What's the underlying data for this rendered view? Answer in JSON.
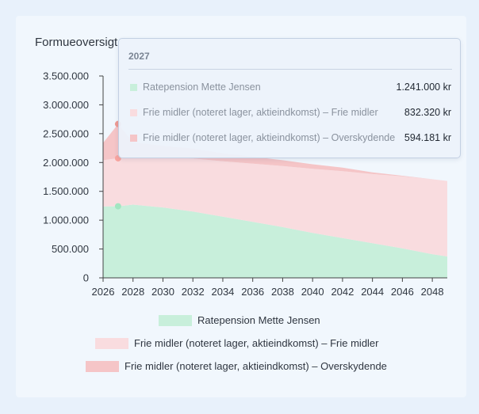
{
  "card": {
    "title": "Formueoversigt"
  },
  "tooltip": {
    "year": "2027",
    "rows": [
      {
        "name": "Ratepension Mette Jensen",
        "value": "1.241.000 kr",
        "color": "#c8efdb"
      },
      {
        "name": "Frie midler (noteret lager, aktieindkomst) – Frie midler",
        "value": "832.320 kr",
        "color": "#f9dcdf"
      },
      {
        "name": "Frie midler (noteret lager, aktieindkomst) – Overskydende",
        "value": "594.181 kr",
        "color": "#f5c5c7"
      }
    ]
  },
  "chart_data": {
    "type": "area",
    "stacked": true,
    "title": "Formueoversigt",
    "x": [
      2026,
      2027,
      2028,
      2030,
      2032,
      2034,
      2036,
      2038,
      2040,
      2042,
      2044,
      2046,
      2048,
      2049
    ],
    "xticks": [
      "2026",
      "2028",
      "2030",
      "2032",
      "2034",
      "2036",
      "2038",
      "2040",
      "2042",
      "2044",
      "2046",
      "2048"
    ],
    "yticks": [
      "3.500.000",
      "3.000.000",
      "2.500.000",
      "2.000.000",
      "1.500.000",
      "1.000.000",
      "500.000",
      "0"
    ],
    "ylim": [
      0,
      3500000
    ],
    "xlim": [
      2026,
      2049
    ],
    "grid": false,
    "legend_position": "bottom",
    "highlight_x": 2027,
    "series": [
      {
        "name": "Ratepension Mette Jensen",
        "color": "#c8efdb",
        "point_color": "#a2e6c1",
        "values": [
          1240000,
          1241000,
          1270000,
          1220000,
          1150000,
          1060000,
          970000,
          880000,
          780000,
          690000,
          600000,
          510000,
          410000,
          370000
        ]
      },
      {
        "name": "Frie midler (noteret lager, aktieindkomst) – Frie midler",
        "color": "#f9dcdf",
        "point_color": "#f8a5a0",
        "values": [
          800000,
          832320,
          830000,
          870000,
          920000,
          960000,
          1010000,
          1060000,
          1110000,
          1160000,
          1200000,
          1250000,
          1300000,
          1310000
        ]
      },
      {
        "name": "Frie midler (noteret lager, aktieindkomst) – Overskydende",
        "color": "#f5c5c7",
        "point_color": "#ef9a93",
        "values": [
          300000,
          594181,
          250000,
          200000,
          170000,
          140000,
          120000,
          100000,
          80000,
          60000,
          30000,
          10000,
          0,
          0
        ]
      }
    ]
  }
}
